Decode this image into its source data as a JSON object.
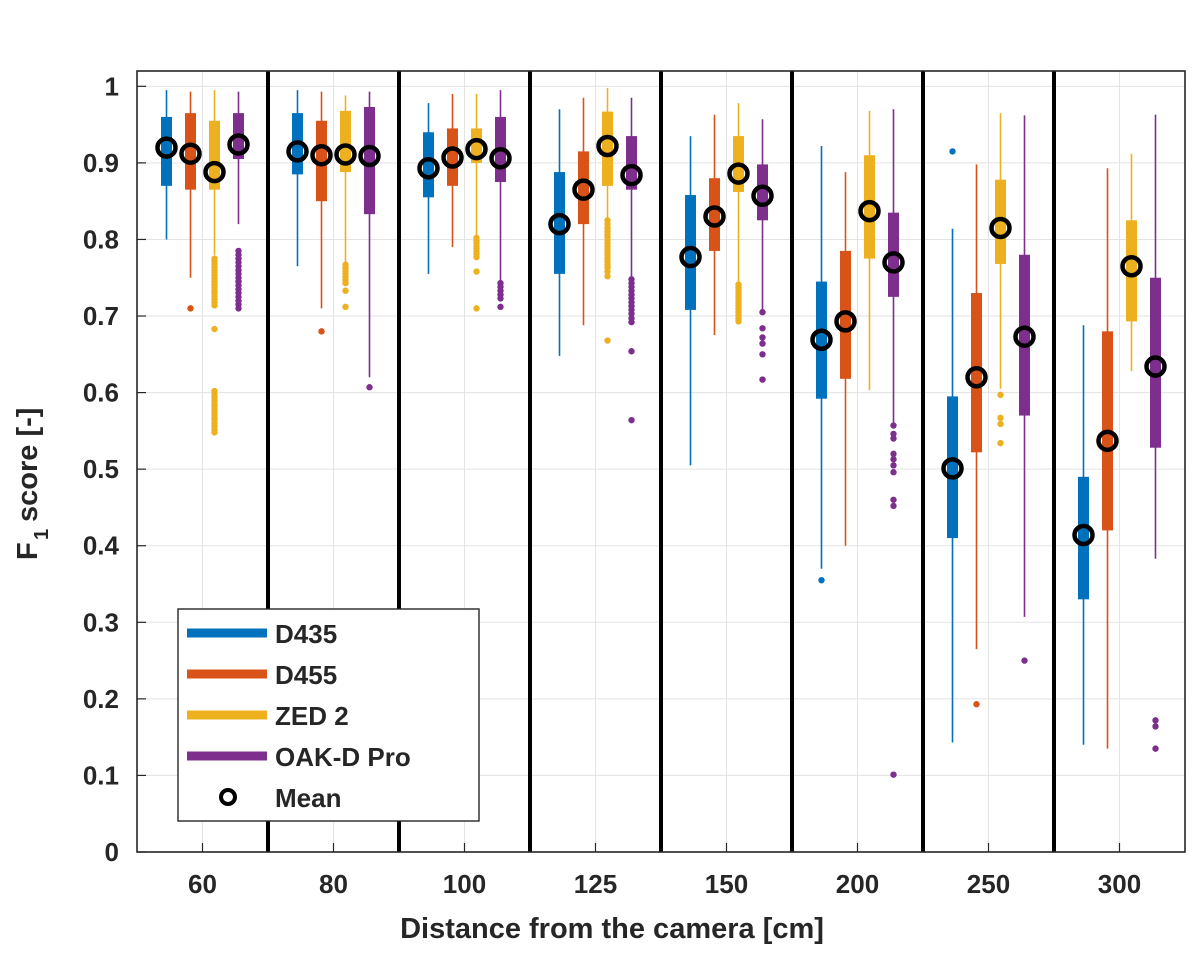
{
  "chart_data": {
    "type": "box",
    "title": "",
    "xlabel": "Distance from the camera [cm]",
    "ylabel_main": "F",
    "ylabel_sub": "1",
    "ylabel_rest": "score [-]",
    "ylim": [
      0,
      1.02
    ],
    "yticks": [
      "0",
      "0.1",
      "0.2",
      "0.3",
      "0.4",
      "0.5",
      "0.6",
      "0.7",
      "0.8",
      "0.9",
      "1"
    ],
    "categories": [
      "60",
      "80",
      "100",
      "125",
      "150",
      "200",
      "250",
      "300"
    ],
    "grid": true,
    "legend_position": "bottom-left",
    "mean_label": "Mean",
    "series": [
      {
        "name": "D435",
        "color": "#0072BD",
        "boxes": [
          {
            "min": 0.8,
            "q1": 0.87,
            "median": 0.92,
            "q3": 0.96,
            "max": 0.995,
            "mean": 0.92,
            "outliers": []
          },
          {
            "min": 0.765,
            "q1": 0.885,
            "median": 0.915,
            "q3": 0.965,
            "max": 0.995,
            "mean": 0.915,
            "outliers": []
          },
          {
            "min": 0.755,
            "q1": 0.855,
            "median": 0.895,
            "q3": 0.94,
            "max": 0.978,
            "mean": 0.893,
            "outliers": []
          },
          {
            "min": 0.648,
            "q1": 0.755,
            "median": 0.82,
            "q3": 0.888,
            "max": 0.97,
            "mean": 0.82,
            "outliers": []
          },
          {
            "min": 0.505,
            "q1": 0.708,
            "median": 0.775,
            "q3": 0.858,
            "max": 0.935,
            "mean": 0.777,
            "outliers": []
          },
          {
            "min": 0.37,
            "q1": 0.592,
            "median": 0.67,
            "q3": 0.745,
            "max": 0.922,
            "mean": 0.669,
            "outliers": [
              0.355
            ]
          },
          {
            "min": 0.143,
            "q1": 0.41,
            "median": 0.5,
            "q3": 0.595,
            "max": 0.814,
            "mean": 0.501,
            "outliers": [
              0.915
            ]
          },
          {
            "min": 0.14,
            "q1": 0.33,
            "median": 0.413,
            "q3": 0.49,
            "max": 0.688,
            "mean": 0.414,
            "outliers": []
          }
        ]
      },
      {
        "name": "D455",
        "color": "#D95319",
        "boxes": [
          {
            "min": 0.75,
            "q1": 0.865,
            "median": 0.912,
            "q3": 0.965,
            "max": 0.993,
            "mean": 0.912,
            "outliers": [
              0.71
            ]
          },
          {
            "min": 0.71,
            "q1": 0.85,
            "median": 0.912,
            "q3": 0.955,
            "max": 0.993,
            "mean": 0.91,
            "outliers": [
              0.68
            ]
          },
          {
            "min": 0.79,
            "q1": 0.87,
            "median": 0.908,
            "q3": 0.945,
            "max": 0.99,
            "mean": 0.907,
            "outliers": []
          },
          {
            "min": 0.688,
            "q1": 0.82,
            "median": 0.865,
            "q3": 0.915,
            "max": 0.985,
            "mean": 0.865,
            "outliers": []
          },
          {
            "min": 0.675,
            "q1": 0.785,
            "median": 0.83,
            "q3": 0.88,
            "max": 0.963,
            "mean": 0.83,
            "outliers": []
          },
          {
            "min": 0.4,
            "q1": 0.618,
            "median": 0.695,
            "q3": 0.785,
            "max": 0.888,
            "mean": 0.693,
            "outliers": []
          },
          {
            "min": 0.265,
            "q1": 0.522,
            "median": 0.62,
            "q3": 0.73,
            "max": 0.898,
            "mean": 0.62,
            "outliers": [
              0.193
            ]
          },
          {
            "min": 0.135,
            "q1": 0.42,
            "median": 0.538,
            "q3": 0.68,
            "max": 0.893,
            "mean": 0.537,
            "outliers": []
          }
        ]
      },
      {
        "name": "ZED 2",
        "color": "#EDB120",
        "boxes": [
          {
            "min": 0.78,
            "q1": 0.865,
            "median": 0.89,
            "q3": 0.955,
            "max": 0.995,
            "mean": 0.888,
            "outliers": [
              0.775,
              0.772,
              0.768,
              0.764,
              0.76,
              0.757,
              0.753,
              0.749,
              0.745,
              0.741,
              0.737,
              0.733,
              0.73,
              0.726,
              0.722,
              0.718,
              0.714,
              0.683,
              0.602,
              0.598,
              0.594,
              0.59,
              0.586,
              0.583,
              0.579,
              0.575,
              0.571,
              0.567,
              0.564,
              0.56,
              0.556,
              0.552,
              0.548
            ]
          },
          {
            "min": 0.77,
            "q1": 0.888,
            "median": 0.912,
            "q3": 0.968,
            "max": 0.988,
            "mean": 0.911,
            "outliers": [
              0.767,
              0.763,
              0.759,
              0.755,
              0.751,
              0.747,
              0.743,
              0.733,
              0.712
            ]
          },
          {
            "min": 0.805,
            "q1": 0.9,
            "median": 0.92,
            "q3": 0.945,
            "max": 0.99,
            "mean": 0.918,
            "outliers": [
              0.802,
              0.798,
              0.795,
              0.791,
              0.788,
              0.784,
              0.781,
              0.777,
              0.758,
              0.71
            ]
          },
          {
            "min": 0.828,
            "q1": 0.87,
            "median": 0.922,
            "q3": 0.967,
            "max": 0.998,
            "mean": 0.922,
            "outliers": [
              0.825,
              0.82,
              0.815,
              0.811,
              0.807,
              0.803,
              0.799,
              0.795,
              0.791,
              0.787,
              0.783,
              0.779,
              0.775,
              0.771,
              0.767,
              0.763,
              0.758,
              0.752,
              0.668
            ]
          },
          {
            "min": 0.745,
            "q1": 0.862,
            "median": 0.885,
            "q3": 0.935,
            "max": 0.978,
            "mean": 0.886,
            "outliers": [
              0.741,
              0.737,
              0.733,
              0.729,
              0.725,
              0.721,
              0.717,
              0.713,
              0.709,
              0.705,
              0.701,
              0.697,
              0.693
            ]
          },
          {
            "min": 0.603,
            "q1": 0.775,
            "median": 0.84,
            "q3": 0.91,
            "max": 0.968,
            "mean": 0.837,
            "outliers": []
          },
          {
            "min": 0.605,
            "q1": 0.768,
            "median": 0.815,
            "q3": 0.878,
            "max": 0.965,
            "mean": 0.815,
            "outliers": [
              0.597,
              0.567,
              0.559,
              0.534
            ]
          },
          {
            "min": 0.628,
            "q1": 0.693,
            "median": 0.765,
            "q3": 0.825,
            "max": 0.912,
            "mean": 0.765,
            "outliers": []
          }
        ]
      },
      {
        "name": "OAK-D Pro",
        "color": "#7E2F8E",
        "boxes": [
          {
            "min": 0.82,
            "q1": 0.905,
            "median": 0.925,
            "q3": 0.965,
            "max": 0.993,
            "mean": 0.924,
            "outliers": [
              0.785,
              0.78,
              0.775,
              0.77,
              0.765,
              0.76,
              0.755,
              0.75,
              0.745,
              0.74,
              0.735,
              0.73,
              0.725,
              0.72,
              0.715,
              0.71
            ]
          },
          {
            "min": 0.62,
            "q1": 0.833,
            "median": 0.91,
            "q3": 0.973,
            "max": 0.993,
            "mean": 0.909,
            "outliers": [
              0.607
            ]
          },
          {
            "min": 0.745,
            "q1": 0.875,
            "median": 0.905,
            "q3": 0.96,
            "max": 0.995,
            "mean": 0.906,
            "outliers": [
              0.743,
              0.738,
              0.733,
              0.728,
              0.723,
              0.712
            ]
          },
          {
            "min": 0.75,
            "q1": 0.865,
            "median": 0.885,
            "q3": 0.935,
            "max": 0.985,
            "mean": 0.884,
            "outliers": [
              0.748,
              0.743,
              0.738,
              0.733,
              0.728,
              0.723,
              0.718,
              0.713,
              0.708,
              0.703,
              0.697,
              0.692,
              0.654,
              0.564
            ]
          },
          {
            "min": 0.705,
            "q1": 0.825,
            "median": 0.86,
            "q3": 0.898,
            "max": 0.957,
            "mean": 0.857,
            "outliers": [
              0.705,
              0.684,
              0.672,
              0.664,
              0.65,
              0.617
            ]
          },
          {
            "min": 0.56,
            "q1": 0.725,
            "median": 0.77,
            "q3": 0.835,
            "max": 0.97,
            "mean": 0.77,
            "outliers": [
              0.557,
              0.546,
              0.54,
              0.52,
              0.513,
              0.505,
              0.496,
              0.46,
              0.452,
              0.101
            ]
          },
          {
            "min": 0.307,
            "q1": 0.57,
            "median": 0.672,
            "q3": 0.78,
            "max": 0.962,
            "mean": 0.673,
            "outliers": [
              0.25
            ]
          },
          {
            "min": 0.383,
            "q1": 0.528,
            "median": 0.633,
            "q3": 0.75,
            "max": 0.963,
            "mean": 0.634,
            "outliers": [
              0.172,
              0.164,
              0.135
            ]
          }
        ]
      }
    ]
  }
}
